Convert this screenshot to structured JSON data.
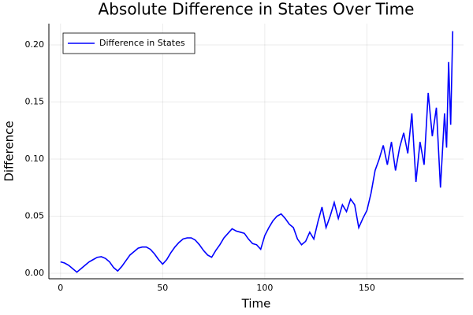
{
  "chart_data": {
    "type": "line",
    "title": "Absolute Difference in States Over Time",
    "x_label": "Time",
    "y_label": "Difference",
    "x": [
      0,
      2,
      4,
      6,
      8,
      10,
      12,
      14,
      16,
      18,
      20,
      22,
      24,
      26,
      28,
      30,
      32,
      34,
      36,
      38,
      40,
      42,
      44,
      46,
      48,
      50,
      52,
      54,
      56,
      58,
      60,
      62,
      64,
      66,
      68,
      70,
      72,
      74,
      76,
      78,
      80,
      82,
      84,
      86,
      88,
      90,
      92,
      94,
      96,
      98,
      100,
      102,
      104,
      106,
      108,
      110,
      112,
      114,
      116,
      118,
      120,
      122,
      124,
      126,
      128,
      130,
      132,
      134,
      136,
      138,
      140,
      142,
      144,
      146,
      148,
      150,
      152,
      154,
      156,
      158,
      160,
      162,
      164,
      166,
      168,
      170,
      172,
      174,
      176,
      178,
      180,
      182,
      184,
      186,
      188,
      189,
      190,
      191,
      192
    ],
    "series": [
      {
        "name": "Difference in States",
        "color": "#0000ff",
        "values": [
          0.01,
          0.009,
          0.007,
          0.004,
          0.001,
          0.004,
          0.007,
          0.01,
          0.012,
          0.014,
          0.0145,
          0.013,
          0.01,
          0.005,
          0.002,
          0.006,
          0.011,
          0.016,
          0.019,
          0.022,
          0.023,
          0.023,
          0.021,
          0.017,
          0.012,
          0.008,
          0.012,
          0.018,
          0.023,
          0.027,
          0.03,
          0.031,
          0.031,
          0.029,
          0.025,
          0.02,
          0.016,
          0.014,
          0.02,
          0.025,
          0.031,
          0.035,
          0.039,
          0.037,
          0.036,
          0.035,
          0.03,
          0.026,
          0.025,
          0.021,
          0.033,
          0.04,
          0.046,
          0.05,
          0.052,
          0.048,
          0.043,
          0.04,
          0.03,
          0.025,
          0.028,
          0.036,
          0.03,
          0.045,
          0.058,
          0.04,
          0.05,
          0.062,
          0.048,
          0.06,
          0.054,
          0.065,
          0.06,
          0.04,
          0.048,
          0.055,
          0.07,
          0.09,
          0.1,
          0.112,
          0.095,
          0.115,
          0.09,
          0.11,
          0.123,
          0.105,
          0.14,
          0.08,
          0.115,
          0.095,
          0.158,
          0.12,
          0.145,
          0.075,
          0.14,
          0.11,
          0.185,
          0.13,
          0.212
        ]
      }
    ],
    "xlim": [
      -5.7,
      197.3
    ],
    "xticks": [
      0,
      50,
      100,
      150
    ],
    "ylim": [
      -0.0048,
      0.2186
    ],
    "yticks": [
      {
        "value": 0,
        "label": "0.00"
      },
      {
        "value": 0.05,
        "label": "0.05"
      },
      {
        "value": 0.1,
        "label": "0.10"
      },
      {
        "value": 0.15,
        "label": "0.15"
      },
      {
        "value": 0.2,
        "label": "0.20"
      }
    ],
    "grid": true,
    "legend": "top-left"
  }
}
